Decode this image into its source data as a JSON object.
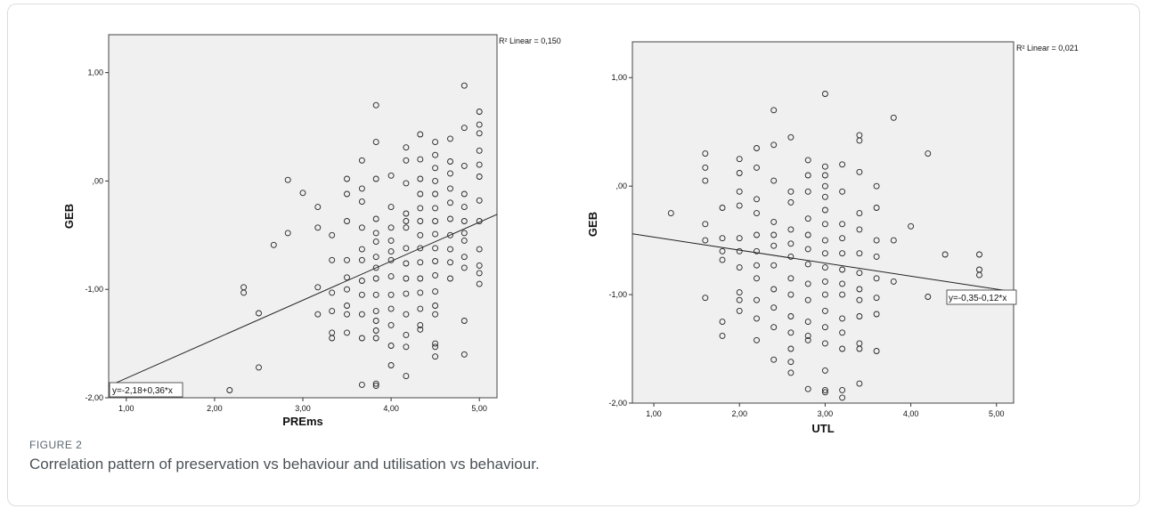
{
  "figure": {
    "label": "FIGURE 2",
    "caption": "Correlation pattern of preservation vs behaviour and utilisation vs behaviour."
  },
  "chart_data": [
    {
      "type": "scatter",
      "xlabel": "PREms",
      "ylabel": "GEB",
      "xlim": [
        0.8,
        5.2
      ],
      "ylim": [
        -2.0,
        1.35
      ],
      "x_ticks": [
        1,
        2,
        3,
        4,
        5
      ],
      "x_tick_labels": [
        "1,00",
        "2,00",
        "3,00",
        "4,00",
        "5,00"
      ],
      "y_ticks": [
        -2,
        -1,
        0,
        1
      ],
      "y_tick_labels": [
        "-2,00",
        "-1,00",
        ",00",
        "1,00"
      ],
      "r2_label": "R² Linear = 0,150",
      "fit_label": "y=-2,18+0,36*x",
      "fit": {
        "intercept": -2.18,
        "slope": 0.36
      },
      "points": [
        [
          2.17,
          -1.93
        ],
        [
          2.33,
          -0.98
        ],
        [
          2.33,
          -1.03
        ],
        [
          2.5,
          -1.22
        ],
        [
          2.5,
          -1.72
        ],
        [
          2.67,
          -0.59
        ],
        [
          2.83,
          0.01
        ],
        [
          2.83,
          -0.48
        ],
        [
          3.0,
          -0.11
        ],
        [
          3.17,
          -0.24
        ],
        [
          3.17,
          -0.43
        ],
        [
          3.17,
          -0.98
        ],
        [
          3.17,
          -1.23
        ],
        [
          3.33,
          -0.5
        ],
        [
          3.33,
          -0.73
        ],
        [
          3.33,
          -1.03
        ],
        [
          3.33,
          -1.2
        ],
        [
          3.33,
          -1.4
        ],
        [
          3.33,
          -1.45
        ],
        [
          3.5,
          0.02
        ],
        [
          3.5,
          -0.12
        ],
        [
          3.5,
          -0.37
        ],
        [
          3.5,
          -0.73
        ],
        [
          3.5,
          -0.89
        ],
        [
          3.5,
          -1.0
        ],
        [
          3.5,
          -1.15
        ],
        [
          3.5,
          -1.23
        ],
        [
          3.5,
          -1.4
        ],
        [
          3.67,
          0.19
        ],
        [
          3.67,
          -0.07
        ],
        [
          3.67,
          -0.19
        ],
        [
          3.67,
          -0.43
        ],
        [
          3.67,
          -0.63
        ],
        [
          3.67,
          -0.73
        ],
        [
          3.67,
          -0.92
        ],
        [
          3.67,
          -1.05
        ],
        [
          3.67,
          -1.23
        ],
        [
          3.67,
          -1.45
        ],
        [
          3.67,
          -1.88
        ],
        [
          3.83,
          0.7
        ],
        [
          3.83,
          0.36
        ],
        [
          3.83,
          0.02
        ],
        [
          3.83,
          -0.35
        ],
        [
          3.83,
          -0.48
        ],
        [
          3.83,
          -0.56
        ],
        [
          3.83,
          -0.7
        ],
        [
          3.83,
          -0.8
        ],
        [
          3.83,
          -0.9
        ],
        [
          3.83,
          -1.05
        ],
        [
          3.83,
          -1.2
        ],
        [
          3.83,
          -1.29
        ],
        [
          3.83,
          -1.38
        ],
        [
          3.83,
          -1.45
        ],
        [
          3.83,
          -1.87
        ],
        [
          3.83,
          -1.89
        ],
        [
          4.0,
          0.05
        ],
        [
          4.0,
          -0.24
        ],
        [
          4.0,
          -0.43
        ],
        [
          4.0,
          -0.55
        ],
        [
          4.0,
          -0.65
        ],
        [
          4.0,
          -0.73
        ],
        [
          4.0,
          -0.88
        ],
        [
          4.0,
          -1.05
        ],
        [
          4.0,
          -1.18
        ],
        [
          4.0,
          -1.33
        ],
        [
          4.0,
          -1.52
        ],
        [
          4.0,
          -1.7
        ],
        [
          4.17,
          0.31
        ],
        [
          4.17,
          0.19
        ],
        [
          4.17,
          -0.02
        ],
        [
          4.17,
          -0.3
        ],
        [
          4.17,
          -0.37
        ],
        [
          4.17,
          -0.43
        ],
        [
          4.17,
          -0.62
        ],
        [
          4.17,
          -0.76
        ],
        [
          4.17,
          -0.9
        ],
        [
          4.17,
          -1.04
        ],
        [
          4.17,
          -1.23
        ],
        [
          4.17,
          -1.42
        ],
        [
          4.17,
          -1.53
        ],
        [
          4.17,
          -1.8
        ],
        [
          4.33,
          0.43
        ],
        [
          4.33,
          0.2
        ],
        [
          4.33,
          0.02
        ],
        [
          4.33,
          -0.12
        ],
        [
          4.33,
          -0.25
        ],
        [
          4.33,
          -0.37
        ],
        [
          4.33,
          -0.5
        ],
        [
          4.33,
          -0.62
        ],
        [
          4.33,
          -0.75
        ],
        [
          4.33,
          -0.9
        ],
        [
          4.33,
          -1.03
        ],
        [
          4.33,
          -1.18
        ],
        [
          4.33,
          -1.33
        ],
        [
          4.33,
          -1.37
        ],
        [
          4.5,
          0.36
        ],
        [
          4.5,
          0.24
        ],
        [
          4.5,
          0.12
        ],
        [
          4.5,
          -0.0
        ],
        [
          4.5,
          -0.12
        ],
        [
          4.5,
          -0.25
        ],
        [
          4.5,
          -0.37
        ],
        [
          4.5,
          -0.49
        ],
        [
          4.5,
          -0.62
        ],
        [
          4.5,
          -0.74
        ],
        [
          4.5,
          -0.87
        ],
        [
          4.5,
          -1.02
        ],
        [
          4.5,
          -1.15
        ],
        [
          4.5,
          -1.23
        ],
        [
          4.5,
          -1.5
        ],
        [
          4.5,
          -1.53
        ],
        [
          4.5,
          -1.62
        ],
        [
          4.67,
          0.39
        ],
        [
          4.67,
          0.18
        ],
        [
          4.67,
          0.07
        ],
        [
          4.67,
          -0.07
        ],
        [
          4.67,
          -0.2
        ],
        [
          4.67,
          -0.35
        ],
        [
          4.67,
          -0.5
        ],
        [
          4.67,
          -0.63
        ],
        [
          4.67,
          -0.75
        ],
        [
          4.67,
          -0.9
        ],
        [
          4.83,
          0.88
        ],
        [
          4.83,
          0.49
        ],
        [
          4.83,
          0.14
        ],
        [
          4.83,
          -0.12
        ],
        [
          4.83,
          -0.24
        ],
        [
          4.83,
          -0.37
        ],
        [
          4.83,
          -0.48
        ],
        [
          4.83,
          -0.55
        ],
        [
          4.83,
          -0.7
        ],
        [
          4.83,
          -0.8
        ],
        [
          4.83,
          -1.29
        ],
        [
          4.83,
          -1.6
        ],
        [
          5.0,
          0.64
        ],
        [
          5.0,
          0.52
        ],
        [
          5.0,
          0.44
        ],
        [
          5.0,
          0.28
        ],
        [
          5.0,
          0.15
        ],
        [
          5.0,
          0.04
        ],
        [
          5.0,
          -0.18
        ],
        [
          5.0,
          -0.37
        ],
        [
          5.0,
          -0.63
        ],
        [
          5.0,
          -0.78
        ],
        [
          5.0,
          -0.85
        ],
        [
          5.0,
          -0.95
        ]
      ]
    },
    {
      "type": "scatter",
      "xlabel": "UTL",
      "ylabel": "GEB",
      "xlim": [
        0.75,
        5.2
      ],
      "ylim": [
        -2.0,
        1.33
      ],
      "x_ticks": [
        1,
        2,
        3,
        4,
        5
      ],
      "x_tick_labels": [
        "1,00",
        "2,00",
        "3,00",
        "4,00",
        "5,00"
      ],
      "y_ticks": [
        -2,
        -1,
        0,
        1
      ],
      "y_tick_labels": [
        "-2,00",
        "-1,00",
        ",00",
        "1,00"
      ],
      "r2_label": "R² Linear = 0,021",
      "fit_label": "y=-0,35-0,12*x",
      "fit": {
        "intercept": -0.35,
        "slope": -0.12
      },
      "points": [
        [
          1.2,
          -0.25
        ],
        [
          1.6,
          0.3
        ],
        [
          1.6,
          0.17
        ],
        [
          1.6,
          0.05
        ],
        [
          1.6,
          -0.35
        ],
        [
          1.6,
          -0.5
        ],
        [
          1.6,
          -1.03
        ],
        [
          1.8,
          -0.2
        ],
        [
          1.8,
          -0.48
        ],
        [
          1.8,
          -0.6
        ],
        [
          1.8,
          -0.68
        ],
        [
          1.8,
          -1.25
        ],
        [
          1.8,
          -1.38
        ],
        [
          2.0,
          0.25
        ],
        [
          2.0,
          0.12
        ],
        [
          2.0,
          -0.05
        ],
        [
          2.0,
          -0.18
        ],
        [
          2.0,
          -0.48
        ],
        [
          2.0,
          -0.6
        ],
        [
          2.0,
          -0.75
        ],
        [
          2.0,
          -0.98
        ],
        [
          2.0,
          -1.05
        ],
        [
          2.0,
          -1.15
        ],
        [
          2.2,
          0.35
        ],
        [
          2.2,
          0.17
        ],
        [
          2.2,
          -0.12
        ],
        [
          2.2,
          -0.25
        ],
        [
          2.2,
          -0.45
        ],
        [
          2.2,
          -0.6
        ],
        [
          2.2,
          -0.73
        ],
        [
          2.2,
          -0.85
        ],
        [
          2.2,
          -1.05
        ],
        [
          2.2,
          -1.22
        ],
        [
          2.2,
          -1.42
        ],
        [
          2.4,
          0.7
        ],
        [
          2.4,
          0.38
        ],
        [
          2.4,
          0.05
        ],
        [
          2.4,
          -0.33
        ],
        [
          2.4,
          -0.45
        ],
        [
          2.4,
          -0.55
        ],
        [
          2.4,
          -0.73
        ],
        [
          2.4,
          -0.95
        ],
        [
          2.4,
          -1.12
        ],
        [
          2.4,
          -1.3
        ],
        [
          2.4,
          -1.6
        ],
        [
          2.6,
          0.45
        ],
        [
          2.6,
          -0.05
        ],
        [
          2.6,
          -0.15
        ],
        [
          2.6,
          -0.4
        ],
        [
          2.6,
          -0.53
        ],
        [
          2.6,
          -0.65
        ],
        [
          2.6,
          -0.85
        ],
        [
          2.6,
          -1.0
        ],
        [
          2.6,
          -1.2
        ],
        [
          2.6,
          -1.35
        ],
        [
          2.6,
          -1.5
        ],
        [
          2.6,
          -1.62
        ],
        [
          2.6,
          -1.72
        ],
        [
          2.8,
          0.24
        ],
        [
          2.8,
          0.1
        ],
        [
          2.8,
          -0.05
        ],
        [
          2.8,
          -0.3
        ],
        [
          2.8,
          -0.45
        ],
        [
          2.8,
          -0.58
        ],
        [
          2.8,
          -0.72
        ],
        [
          2.8,
          -0.9
        ],
        [
          2.8,
          -1.05
        ],
        [
          2.8,
          -1.25
        ],
        [
          2.8,
          -1.38
        ],
        [
          2.8,
          -1.42
        ],
        [
          2.8,
          -1.87
        ],
        [
          3.0,
          0.85
        ],
        [
          3.0,
          0.18
        ],
        [
          3.0,
          0.1
        ],
        [
          3.0,
          0.0
        ],
        [
          3.0,
          -0.1
        ],
        [
          3.0,
          -0.22
        ],
        [
          3.0,
          -0.35
        ],
        [
          3.0,
          -0.5
        ],
        [
          3.0,
          -0.62
        ],
        [
          3.0,
          -0.75
        ],
        [
          3.0,
          -0.88
        ],
        [
          3.0,
          -1.0
        ],
        [
          3.0,
          -1.15
        ],
        [
          3.0,
          -1.3
        ],
        [
          3.0,
          -1.45
        ],
        [
          3.0,
          -1.7
        ],
        [
          3.0,
          -1.88
        ],
        [
          3.0,
          -1.9
        ],
        [
          3.2,
          0.2
        ],
        [
          3.2,
          -0.05
        ],
        [
          3.2,
          -0.35
        ],
        [
          3.2,
          -0.48
        ],
        [
          3.2,
          -0.62
        ],
        [
          3.2,
          -0.77
        ],
        [
          3.2,
          -0.9
        ],
        [
          3.2,
          -1.0
        ],
        [
          3.2,
          -1.22
        ],
        [
          3.2,
          -1.35
        ],
        [
          3.2,
          -1.5
        ],
        [
          3.2,
          -1.88
        ],
        [
          3.2,
          -1.95
        ],
        [
          3.4,
          0.47
        ],
        [
          3.4,
          0.42
        ],
        [
          3.4,
          0.13
        ],
        [
          3.4,
          -0.25
        ],
        [
          3.4,
          -0.4
        ],
        [
          3.4,
          -0.62
        ],
        [
          3.4,
          -0.8
        ],
        [
          3.4,
          -0.95
        ],
        [
          3.4,
          -1.05
        ],
        [
          3.4,
          -1.2
        ],
        [
          3.4,
          -1.45
        ],
        [
          3.4,
          -1.5
        ],
        [
          3.4,
          -1.82
        ],
        [
          3.6,
          0.0
        ],
        [
          3.6,
          -0.2
        ],
        [
          3.6,
          -0.5
        ],
        [
          3.6,
          -0.65
        ],
        [
          3.6,
          -0.85
        ],
        [
          3.6,
          -1.03
        ],
        [
          3.6,
          -1.18
        ],
        [
          3.6,
          -1.52
        ],
        [
          3.8,
          0.63
        ],
        [
          3.8,
          -0.5
        ],
        [
          3.8,
          -0.88
        ],
        [
          4.0,
          -0.37
        ],
        [
          4.2,
          0.3
        ],
        [
          4.2,
          -1.02
        ],
        [
          4.4,
          -0.63
        ],
        [
          4.8,
          -0.63
        ],
        [
          4.8,
          -0.77
        ],
        [
          4.8,
          -0.82
        ]
      ]
    }
  ]
}
